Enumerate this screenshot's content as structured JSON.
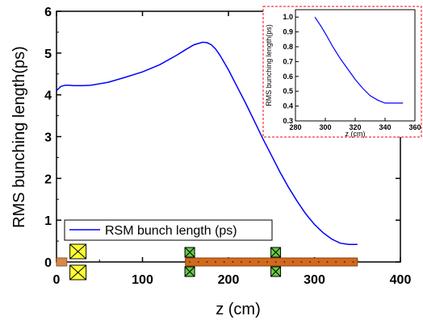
{
  "chart_data": [
    {
      "type": "line",
      "xlabel": "z (cm)",
      "ylabel": "RMS bunching length(ps)",
      "xlim": [
        0,
        400
      ],
      "ylim": [
        0,
        6
      ],
      "x_ticks": [
        "0",
        "100",
        "200",
        "300",
        "400"
      ],
      "y_ticks": [
        "0",
        "1",
        "2",
        "3",
        "4",
        "5",
        "6"
      ],
      "grid": false,
      "legend_position": "bottom-left",
      "series": [
        {
          "name": "RSM bunch length (ps)",
          "color": "#0000ff",
          "x": [
            0,
            5,
            10,
            15,
            20,
            30,
            40,
            60,
            80,
            100,
            120,
            140,
            150,
            160,
            170,
            175,
            180,
            185,
            190,
            200,
            210,
            220,
            230,
            240,
            250,
            260,
            270,
            280,
            290,
            300,
            310,
            320,
            330,
            340,
            350
          ],
          "values": [
            4.1,
            4.2,
            4.23,
            4.23,
            4.22,
            4.22,
            4.23,
            4.3,
            4.42,
            4.55,
            4.72,
            4.95,
            5.08,
            5.2,
            5.26,
            5.25,
            5.2,
            5.1,
            4.95,
            4.6,
            4.2,
            3.8,
            3.38,
            2.95,
            2.55,
            2.15,
            1.78,
            1.45,
            1.15,
            0.9,
            0.7,
            0.55,
            0.45,
            0.42,
            0.42
          ]
        }
      ],
      "beamline": {
        "pipe_start": [
          0,
          12
        ],
        "pipe": [
          150,
          350
        ],
        "solenoid_z": 25,
        "quads_z": [
          155,
          255
        ]
      }
    },
    {
      "type": "line",
      "xlabel": "z (cm)",
      "ylabel": "RMS bunching length(ps)",
      "xlim": [
        280,
        360
      ],
      "ylim": [
        0.3,
        1.05
      ],
      "x_ticks": [
        "280",
        "300",
        "320",
        "340",
        "360"
      ],
      "y_ticks": [
        "0.3",
        "0.4",
        "0.5",
        "0.6",
        "0.7",
        "0.8",
        "0.9",
        "1.0"
      ],
      "series": [
        {
          "color": "#0000ff",
          "x": [
            293,
            297,
            300,
            305,
            310,
            315,
            320,
            325,
            330,
            335,
            340,
            345,
            352
          ],
          "values": [
            1.0,
            0.94,
            0.89,
            0.8,
            0.72,
            0.65,
            0.58,
            0.52,
            0.47,
            0.44,
            0.42,
            0.42,
            0.42
          ]
        }
      ]
    }
  ]
}
